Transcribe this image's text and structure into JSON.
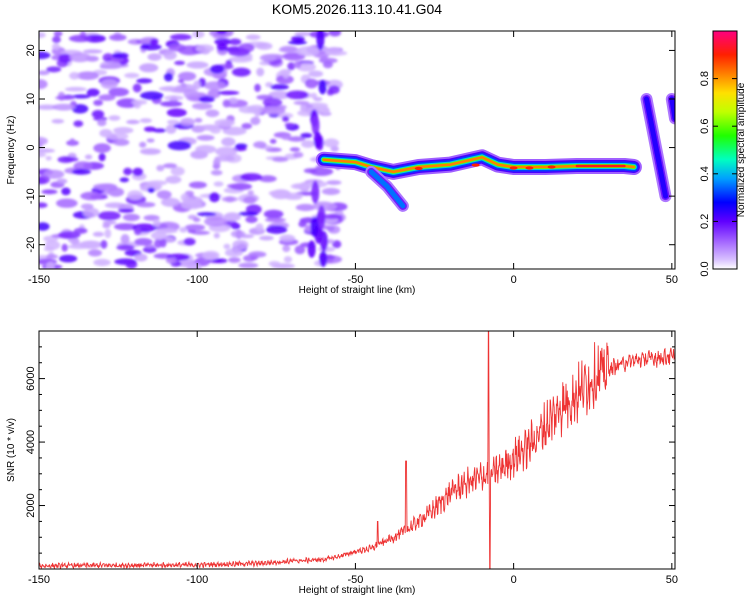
{
  "title": "KOM5.2026.113.10.41.G04",
  "chart_data": [
    {
      "type": "heatmap",
      "name": "spectrogram",
      "xlabel": "Height of straight line (km)",
      "ylabel": "Frequency (Hz)",
      "xlim": [
        -150,
        51
      ],
      "ylim": [
        -25,
        24
      ],
      "xticks": [
        -150,
        -100,
        -50,
        0,
        50
      ],
      "yticks": [
        -20,
        -10,
        0,
        10,
        20
      ],
      "colorbar": {
        "label": "Normalized spectral amplitude",
        "range": [
          0,
          1
        ],
        "ticks": [
          "0.0",
          "0.2",
          "0.4",
          "0.6",
          "0.8"
        ],
        "colors": [
          "#ffffff",
          "#c8a0ff",
          "#8000ff",
          "#0000ff",
          "#00c0ff",
          "#00ff80",
          "#80ff00",
          "#ffff00",
          "#ff8000",
          "#ff0000",
          "#ff0080"
        ]
      },
      "noise_region_x": [
        -150,
        -55
      ],
      "features": [
        {
          "label": "main track",
          "points": [
            [
              -60,
              -2.5
            ],
            [
              -50,
              -3
            ],
            [
              -45,
              -4
            ],
            [
              -38,
              -5
            ],
            [
              -30,
              -4
            ],
            [
              -20,
              -3.5
            ],
            [
              -10,
              -2
            ],
            [
              -5,
              -3.5
            ],
            [
              0,
              -4
            ],
            [
              10,
              -4
            ],
            [
              20,
              -3.8
            ],
            [
              35,
              -3.8
            ],
            [
              38,
              -4
            ]
          ],
          "peak": 1.0
        },
        {
          "label": "branch",
          "points": [
            [
              -45,
              -5
            ],
            [
              -40,
              -8
            ],
            [
              -35,
              -12
            ]
          ],
          "peak": 0.35
        },
        {
          "label": "column",
          "points": [
            [
              42,
              10
            ],
            [
              45,
              0
            ],
            [
              48,
              -10
            ]
          ],
          "peak": 0.25
        },
        {
          "label": "column",
          "points": [
            [
              50,
              10
            ],
            [
              51,
              6
            ]
          ],
          "peak": 0.25
        }
      ]
    },
    {
      "type": "line",
      "name": "snr",
      "xlabel": "Height of straight line (km)",
      "ylabel": "SNR (10 * v/v)",
      "xlim": [
        -150,
        51
      ],
      "ylim": [
        0,
        7500
      ],
      "xticks": [
        -150,
        -100,
        -50,
        0,
        50
      ],
      "yticks": [
        2000,
        4000,
        6000
      ],
      "color": "#ee3333",
      "series": [
        {
          "name": "SNR",
          "x": [
            -150,
            -120,
            -100,
            -80,
            -70,
            -60,
            -55,
            -50,
            -45,
            -40,
            -35,
            -30,
            -25,
            -20,
            -15,
            -10,
            -5,
            0,
            5,
            10,
            15,
            20,
            25,
            30,
            35,
            40,
            45,
            51
          ],
          "values": [
            100,
            120,
            130,
            180,
            250,
            300,
            400,
            550,
            650,
            900,
            1150,
            1500,
            1900,
            2400,
            2700,
            2900,
            3100,
            3500,
            3900,
            4500,
            5100,
            5500,
            6000,
            6300,
            6500,
            6600,
            6650,
            6700
          ]
        }
      ],
      "spikes": [
        {
          "x": -43,
          "value": 1500
        },
        {
          "x": -34,
          "value": 3400
        },
        {
          "x": -8,
          "value": 7500
        },
        {
          "x": -7.5,
          "value": 0
        }
      ]
    }
  ]
}
